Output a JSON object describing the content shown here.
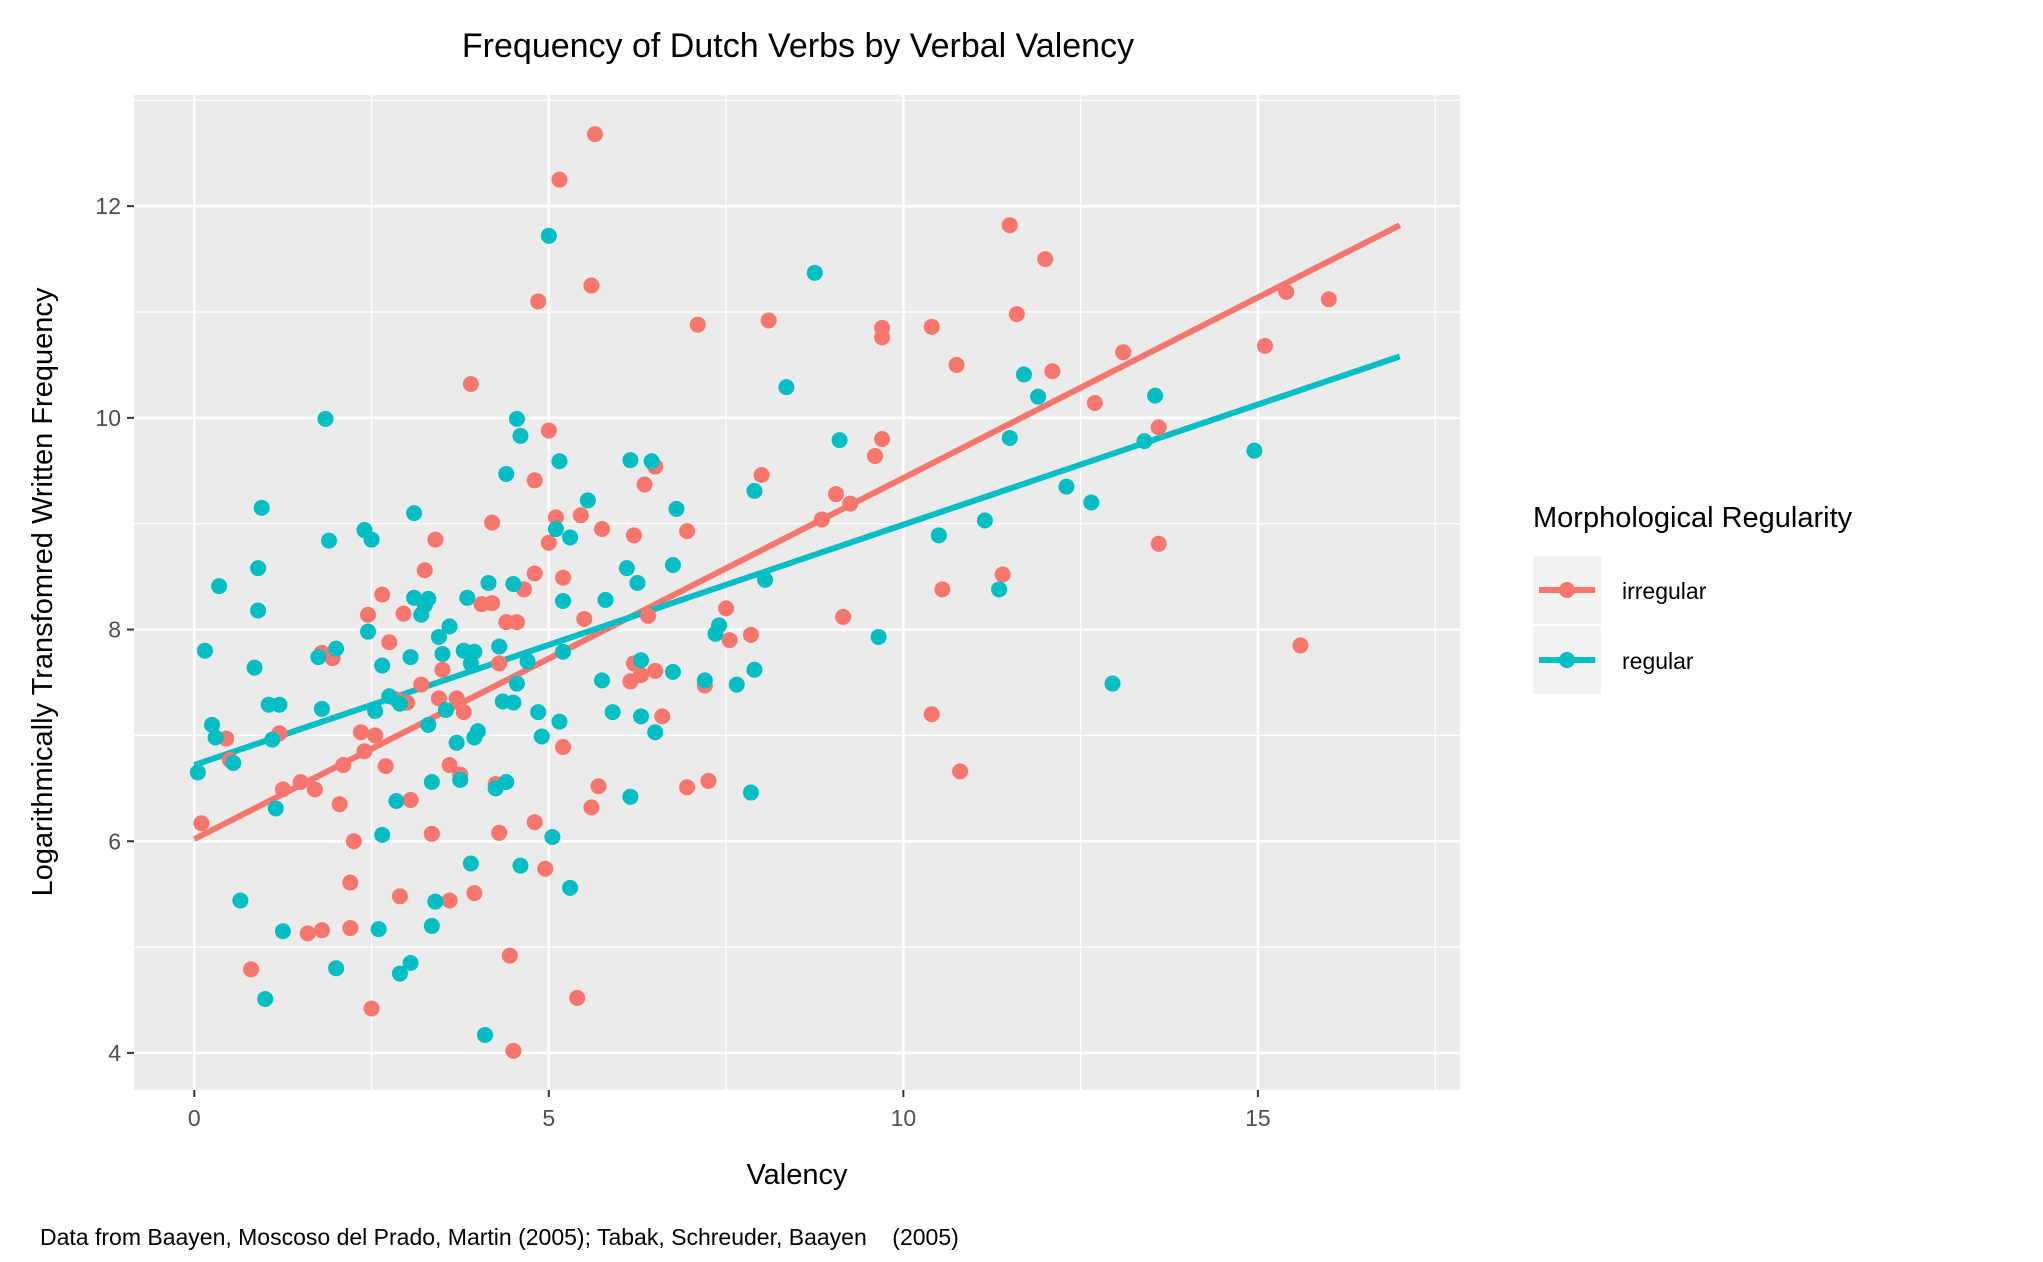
{
  "chart_data": {
    "type": "scatter",
    "title": "Frequency of Dutch Verbs by Verbal Valency",
    "xlabel": "Valency",
    "ylabel": "Logarithmically Transfomred Written Frequency",
    "caption": "Data from Baayen, Moscoso del Prado, Martin (2005); Tabak, Schreuder, Baayen    (2005)",
    "xlim": [
      -0.85,
      17.85
    ],
    "ylim": [
      3.65,
      13.05
    ],
    "xticks": [
      0,
      5,
      10,
      15
    ],
    "yticks": [
      4,
      6,
      8,
      10,
      12
    ],
    "grid": true,
    "legend": {
      "title": "Morphological Regularity",
      "position": "right"
    },
    "series": [
      {
        "name": "irregular",
        "color": "#F8766D",
        "trend": {
          "x": [
            0,
            17
          ],
          "y": [
            6.02,
            11.82
          ]
        },
        "points": [
          [
            0.1,
            6.17
          ],
          [
            0.45,
            6.97
          ],
          [
            0.5,
            6.77
          ],
          [
            0.8,
            4.79
          ],
          [
            1.2,
            7.02
          ],
          [
            1.25,
            6.49
          ],
          [
            1.5,
            6.56
          ],
          [
            1.6,
            5.13
          ],
          [
            1.7,
            6.49
          ],
          [
            1.8,
            7.78
          ],
          [
            1.8,
            5.16
          ],
          [
            1.95,
            7.73
          ],
          [
            2.05,
            6.35
          ],
          [
            2.1,
            6.72
          ],
          [
            2.2,
            5.61
          ],
          [
            2.2,
            5.18
          ],
          [
            2.25,
            6.0
          ],
          [
            2.35,
            7.03
          ],
          [
            2.4,
            6.85
          ],
          [
            2.45,
            8.14
          ],
          [
            2.5,
            4.42
          ],
          [
            2.55,
            7.0
          ],
          [
            2.65,
            8.33
          ],
          [
            2.7,
            6.71
          ],
          [
            2.75,
            7.88
          ],
          [
            2.85,
            7.34
          ],
          [
            2.9,
            5.48
          ],
          [
            2.95,
            8.15
          ],
          [
            3.0,
            7.31
          ],
          [
            3.05,
            6.39
          ],
          [
            3.2,
            7.48
          ],
          [
            3.25,
            8.56
          ],
          [
            3.35,
            6.07
          ],
          [
            3.4,
            8.85
          ],
          [
            3.45,
            7.35
          ],
          [
            3.5,
            7.62
          ],
          [
            3.6,
            5.44
          ],
          [
            3.6,
            6.72
          ],
          [
            3.7,
            7.35
          ],
          [
            3.75,
            6.63
          ],
          [
            3.8,
            7.22
          ],
          [
            3.9,
            10.32
          ],
          [
            3.95,
            5.51
          ],
          [
            4.05,
            8.24
          ],
          [
            4.2,
            8.25
          ],
          [
            4.2,
            9.01
          ],
          [
            4.25,
            6.54
          ],
          [
            4.3,
            7.68
          ],
          [
            4.3,
            6.08
          ],
          [
            4.4,
            8.07
          ],
          [
            4.45,
            4.92
          ],
          [
            4.5,
            4.02
          ],
          [
            4.55,
            8.07
          ],
          [
            4.65,
            8.38
          ],
          [
            4.8,
            9.41
          ],
          [
            4.8,
            8.53
          ],
          [
            4.8,
            6.18
          ],
          [
            4.85,
            11.1
          ],
          [
            4.95,
            5.74
          ],
          [
            5.0,
            9.88
          ],
          [
            5.0,
            8.82
          ],
          [
            5.1,
            9.06
          ],
          [
            5.15,
            12.25
          ],
          [
            5.2,
            8.49
          ],
          [
            5.2,
            6.89
          ],
          [
            5.4,
            4.52
          ],
          [
            5.45,
            9.08
          ],
          [
            5.5,
            8.1
          ],
          [
            5.6,
            6.32
          ],
          [
            5.6,
            11.25
          ],
          [
            5.65,
            12.68
          ],
          [
            5.7,
            6.52
          ],
          [
            5.75,
            8.95
          ],
          [
            6.15,
            7.51
          ],
          [
            6.2,
            8.89
          ],
          [
            6.2,
            7.68
          ],
          [
            6.3,
            7.57
          ],
          [
            6.35,
            9.37
          ],
          [
            6.4,
            8.13
          ],
          [
            6.5,
            7.61
          ],
          [
            6.5,
            9.54
          ],
          [
            6.6,
            7.18
          ],
          [
            6.95,
            6.51
          ],
          [
            6.95,
            8.93
          ],
          [
            7.1,
            10.88
          ],
          [
            7.2,
            7.47
          ],
          [
            7.25,
            6.57
          ],
          [
            7.5,
            8.2
          ],
          [
            7.55,
            7.9
          ],
          [
            7.85,
            7.95
          ],
          [
            8.0,
            9.46
          ],
          [
            8.1,
            10.92
          ],
          [
            8.85,
            9.04
          ],
          [
            9.05,
            9.28
          ],
          [
            9.15,
            8.12
          ],
          [
            9.25,
            9.19
          ],
          [
            9.6,
            9.64
          ],
          [
            9.7,
            10.85
          ],
          [
            9.7,
            9.8
          ],
          [
            9.7,
            10.76
          ],
          [
            10.4,
            10.86
          ],
          [
            10.4,
            7.2
          ],
          [
            10.55,
            8.38
          ],
          [
            10.75,
            10.5
          ],
          [
            10.8,
            6.66
          ],
          [
            11.4,
            8.52
          ],
          [
            11.5,
            11.82
          ],
          [
            11.6,
            10.98
          ],
          [
            12.0,
            11.5
          ],
          [
            12.1,
            10.44
          ],
          [
            12.7,
            10.14
          ],
          [
            13.1,
            10.62
          ],
          [
            13.6,
            9.91
          ],
          [
            13.6,
            8.81
          ],
          [
            15.1,
            10.68
          ],
          [
            15.4,
            11.19
          ],
          [
            15.6,
            7.85
          ],
          [
            16.0,
            11.12
          ]
        ]
      },
      {
        "name": "regular",
        "color": "#00BFC4",
        "trend": {
          "x": [
            0,
            17
          ],
          "y": [
            6.72,
            10.58
          ]
        },
        "points": [
          [
            0.05,
            6.65
          ],
          [
            0.15,
            7.8
          ],
          [
            0.25,
            7.1
          ],
          [
            0.3,
            6.98
          ],
          [
            0.35,
            8.41
          ],
          [
            0.55,
            6.74
          ],
          [
            0.65,
            5.44
          ],
          [
            0.85,
            7.64
          ],
          [
            0.9,
            8.58
          ],
          [
            0.9,
            8.18
          ],
          [
            0.95,
            9.15
          ],
          [
            1.0,
            4.51
          ],
          [
            1.05,
            7.29
          ],
          [
            1.1,
            6.96
          ],
          [
            1.15,
            6.31
          ],
          [
            1.2,
            7.29
          ],
          [
            1.25,
            5.15
          ],
          [
            1.75,
            7.74
          ],
          [
            1.8,
            7.25
          ],
          [
            1.85,
            9.99
          ],
          [
            1.9,
            8.84
          ],
          [
            2.0,
            4.8
          ],
          [
            2.0,
            7.82
          ],
          [
            2.4,
            8.94
          ],
          [
            2.45,
            7.98
          ],
          [
            2.5,
            8.85
          ],
          [
            2.55,
            7.23
          ],
          [
            2.6,
            5.17
          ],
          [
            2.65,
            6.06
          ],
          [
            2.65,
            7.66
          ],
          [
            2.75,
            7.37
          ],
          [
            2.85,
            6.38
          ],
          [
            2.9,
            4.75
          ],
          [
            2.9,
            7.3
          ],
          [
            3.05,
            4.85
          ],
          [
            3.05,
            7.74
          ],
          [
            3.1,
            9.1
          ],
          [
            3.1,
            8.3
          ],
          [
            3.2,
            8.14
          ],
          [
            3.25,
            8.23
          ],
          [
            3.3,
            8.29
          ],
          [
            3.3,
            7.1
          ],
          [
            3.35,
            5.2
          ],
          [
            3.35,
            6.56
          ],
          [
            3.4,
            5.43
          ],
          [
            3.45,
            7.93
          ],
          [
            3.5,
            7.77
          ],
          [
            3.55,
            7.24
          ],
          [
            3.6,
            8.03
          ],
          [
            3.7,
            6.93
          ],
          [
            3.75,
            6.58
          ],
          [
            3.8,
            7.8
          ],
          [
            3.85,
            8.3
          ],
          [
            3.9,
            7.68
          ],
          [
            3.9,
            5.79
          ],
          [
            3.95,
            7.79
          ],
          [
            3.95,
            6.98
          ],
          [
            4.0,
            7.04
          ],
          [
            4.1,
            4.17
          ],
          [
            4.15,
            8.44
          ],
          [
            4.25,
            6.5
          ],
          [
            4.3,
            7.84
          ],
          [
            4.35,
            7.32
          ],
          [
            4.4,
            9.47
          ],
          [
            4.4,
            6.56
          ],
          [
            4.5,
            7.31
          ],
          [
            4.5,
            8.43
          ],
          [
            4.55,
            7.49
          ],
          [
            4.55,
            9.99
          ],
          [
            4.6,
            9.83
          ],
          [
            4.6,
            5.77
          ],
          [
            4.7,
            7.7
          ],
          [
            4.85,
            7.22
          ],
          [
            4.9,
            6.99
          ],
          [
            5.0,
            11.72
          ],
          [
            5.05,
            6.04
          ],
          [
            5.1,
            8.95
          ],
          [
            5.15,
            7.13
          ],
          [
            5.15,
            9.59
          ],
          [
            5.2,
            8.27
          ],
          [
            5.2,
            7.79
          ],
          [
            5.3,
            8.87
          ],
          [
            5.3,
            5.56
          ],
          [
            5.55,
            9.22
          ],
          [
            5.75,
            7.52
          ],
          [
            5.8,
            8.28
          ],
          [
            5.9,
            7.22
          ],
          [
            6.1,
            8.58
          ],
          [
            6.15,
            9.6
          ],
          [
            6.15,
            6.42
          ],
          [
            6.25,
            8.44
          ],
          [
            6.3,
            7.71
          ],
          [
            6.3,
            7.18
          ],
          [
            6.45,
            9.59
          ],
          [
            6.5,
            7.03
          ],
          [
            6.75,
            8.61
          ],
          [
            6.75,
            7.6
          ],
          [
            6.8,
            9.14
          ],
          [
            7.2,
            7.52
          ],
          [
            7.35,
            7.96
          ],
          [
            7.4,
            8.04
          ],
          [
            7.65,
            7.48
          ],
          [
            7.85,
            6.46
          ],
          [
            7.9,
            9.31
          ],
          [
            7.9,
            7.62
          ],
          [
            8.05,
            8.47
          ],
          [
            8.35,
            10.29
          ],
          [
            8.75,
            11.37
          ],
          [
            9.1,
            9.79
          ],
          [
            9.65,
            7.93
          ],
          [
            10.5,
            8.89
          ],
          [
            11.15,
            9.03
          ],
          [
            11.35,
            8.38
          ],
          [
            11.5,
            9.81
          ],
          [
            11.7,
            10.41
          ],
          [
            11.9,
            10.2
          ],
          [
            12.3,
            9.35
          ],
          [
            12.65,
            9.2
          ],
          [
            12.95,
            7.49
          ],
          [
            13.4,
            9.78
          ],
          [
            13.55,
            10.21
          ],
          [
            14.95,
            9.69
          ]
        ]
      }
    ]
  }
}
